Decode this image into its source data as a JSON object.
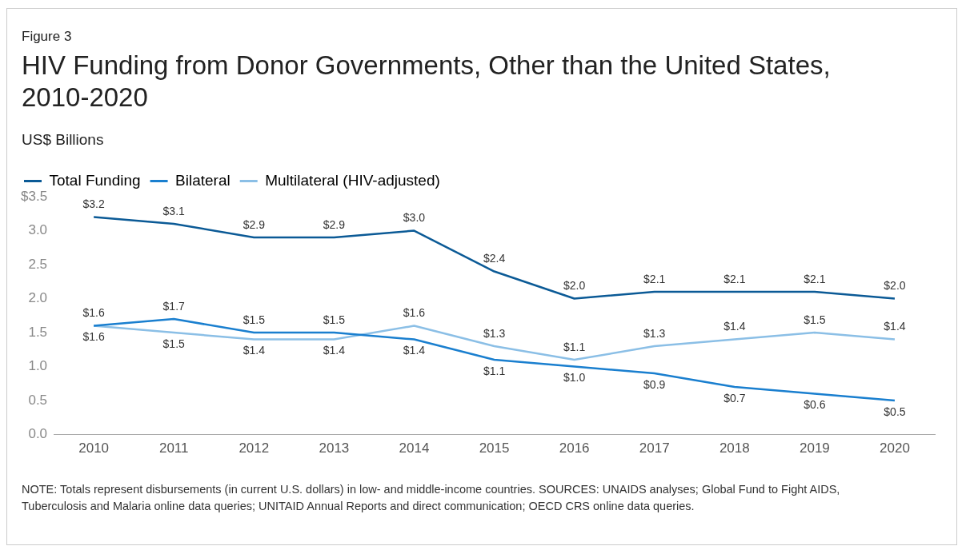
{
  "chart_data": {
    "type": "line",
    "title": "HIV Funding from Donor Governments, Other than the United States, 2010-2020",
    "subtitle": "US$ Billions",
    "annotations": [
      "Figure 3",
      "NOTE: Totals represent disbursements (in current U.S. dollars) in low- and middle-income countries. SOURCES: UNAIDS analyses; Global Fund to Fight AIDS, Tuberculosis and Malaria online data queries; UNITAID Annual Reports and direct communication; OECD CRS online data queries."
    ],
    "categories": [
      "2010",
      "2011",
      "2012",
      "2013",
      "2014",
      "2015",
      "2016",
      "2017",
      "2018",
      "2019",
      "2020"
    ],
    "series": [
      {
        "name": "Total Funding",
        "color": "#0b5a96",
        "values": [
          3.2,
          3.1,
          2.9,
          2.9,
          3.0,
          2.4,
          2.0,
          2.1,
          2.1,
          2.1,
          2.0
        ],
        "value_labels": [
          "$3.2",
          "$3.1",
          "$2.9",
          "$2.9",
          "$3.0",
          "$2.4",
          "$2.0",
          "$2.1",
          "$2.1",
          "$2.1",
          "$2.0"
        ]
      },
      {
        "name": "Bilateral",
        "color": "#1a7fcf",
        "values": [
          1.6,
          1.7,
          1.5,
          1.5,
          1.4,
          1.1,
          1.0,
          0.9,
          0.7,
          0.6,
          0.5
        ],
        "value_labels": [
          "$1.6",
          "$1.7",
          "$1.5",
          "$1.5",
          "$1.4",
          "$1.1",
          "$1.0",
          "$0.9",
          "$0.7",
          "$0.6",
          "$0.5"
        ]
      },
      {
        "name": "Multilateral (HIV-adjusted)",
        "color": "#8bbfe6",
        "values": [
          1.6,
          1.5,
          1.4,
          1.4,
          1.6,
          1.3,
          1.1,
          1.3,
          1.4,
          1.5,
          1.4
        ],
        "value_labels": [
          "$1.6",
          "$1.5",
          "$1.4",
          "$1.4",
          "$1.6",
          "$1.3",
          "$1.1",
          "$1.3",
          "$1.4",
          "$1.5",
          "$1.4"
        ]
      }
    ],
    "ylim": [
      0,
      3.5
    ],
    "yticks": [
      {
        "value": 0,
        "label": "0.0"
      },
      {
        "value": 0.5,
        "label": "0.5"
      },
      {
        "value": 1,
        "label": "1.0"
      },
      {
        "value": 1.5,
        "label": "1.5"
      },
      {
        "value": 2,
        "label": "2.0"
      },
      {
        "value": 2.5,
        "label": "2.5"
      },
      {
        "value": 3,
        "label": "3.0"
      },
      {
        "value": 3.5,
        "label": "$3.5"
      }
    ],
    "grid": false,
    "legend": "top left",
    "marker": "none",
    "line_style": "solid"
  }
}
